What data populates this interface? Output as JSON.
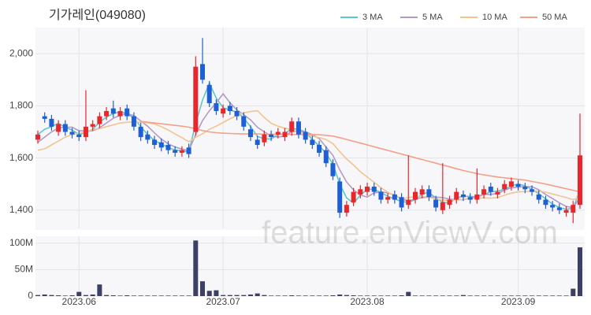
{
  "chart_data": {
    "type": "candlestick",
    "title": "기가레인(049080)",
    "watermark": "feature.enViewV.com",
    "categories": [
      null,
      null,
      null,
      null,
      null,
      null,
      "2023.06",
      null,
      null,
      null,
      null,
      null,
      null,
      null,
      null,
      null,
      null,
      null,
      null,
      null,
      null,
      null,
      null,
      null,
      null,
      null,
      null,
      "2023.07",
      null,
      null,
      null,
      null,
      null,
      null,
      null,
      null,
      null,
      null,
      null,
      null,
      null,
      null,
      null,
      null,
      null,
      null,
      null,
      null,
      "2023.08",
      null,
      null,
      null,
      null,
      null,
      null,
      null,
      null,
      null,
      null,
      null,
      null,
      null,
      null,
      null,
      null,
      null,
      null,
      null,
      null,
      null,
      "2023.09",
      null,
      null,
      null,
      null,
      null,
      null,
      null,
      null,
      null
    ],
    "open": [
      1670,
      1760,
      1750,
      1700,
      1730,
      1700,
      1690,
      1680,
      1720,
      1730,
      1760,
      1790,
      1760,
      1790,
      1760,
      1720,
      1690,
      1670,
      1660,
      1650,
      1630,
      1620,
      1640,
      1700,
      1960,
      1880,
      1810,
      1770,
      1800,
      1780,
      1760,
      1710,
      1670,
      1660,
      1690,
      1690,
      1680,
      1700,
      1740,
      1700,
      1670,
      1650,
      1630,
      1580,
      1510,
      1390,
      1430,
      1460,
      1470,
      1490,
      1470,
      1440,
      1460,
      1450,
      1420,
      1440,
      1460,
      1480,
      1440,
      1400,
      1420,
      1440,
      1460,
      1450,
      1440,
      1460,
      1490,
      1460,
      1480,
      1490,
      1500,
      1490,
      1480,
      1460,
      1440,
      1420,
      1410,
      1390,
      1390,
      1420
    ],
    "high": [
      1705,
      1775,
      1765,
      1745,
      1745,
      1715,
      1705,
      1860,
      1745,
      1775,
      1795,
      1820,
      1795,
      1805,
      1775,
      1735,
      1705,
      1685,
      1675,
      1665,
      1645,
      1645,
      1655,
      1990,
      2060,
      1895,
      1825,
      1805,
      1815,
      1795,
      1775,
      1725,
      1685,
      1705,
      1705,
      1715,
      1715,
      1755,
      1755,
      1715,
      1685,
      1665,
      1645,
      1595,
      1525,
      1435,
      1485,
      1495,
      1505,
      1505,
      1485,
      1465,
      1475,
      1465,
      1610,
      1485,
      1495,
      1495,
      1455,
      1580,
      1455,
      1485,
      1475,
      1465,
      1560,
      1495,
      1505,
      1485,
      1515,
      1525,
      1515,
      1505,
      1495,
      1475,
      1455,
      1435,
      1425,
      1415,
      1435,
      1770
    ],
    "low": [
      1655,
      1735,
      1705,
      1685,
      1685,
      1675,
      1665,
      1665,
      1705,
      1715,
      1745,
      1755,
      1745,
      1745,
      1705,
      1665,
      1655,
      1635,
      1625,
      1615,
      1605,
      1605,
      1600,
      1685,
      1885,
      1795,
      1765,
      1755,
      1765,
      1745,
      1705,
      1665,
      1635,
      1645,
      1665,
      1675,
      1665,
      1685,
      1675,
      1655,
      1635,
      1605,
      1565,
      1515,
      1370,
      1375,
      1415,
      1445,
      1455,
      1455,
      1425,
      1425,
      1425,
      1395,
      1405,
      1425,
      1445,
      1435,
      1395,
      1385,
      1405,
      1425,
      1435,
      1425,
      1425,
      1445,
      1455,
      1445,
      1465,
      1475,
      1475,
      1465,
      1455,
      1425,
      1405,
      1395,
      1385,
      1375,
      1350,
      1405
    ],
    "close": [
      1690,
      1750,
      1720,
      1730,
      1700,
      1690,
      1680,
      1720,
      1730,
      1760,
      1780,
      1770,
      1780,
      1760,
      1720,
      1680,
      1670,
      1650,
      1640,
      1630,
      1620,
      1630,
      1615,
      1950,
      1900,
      1810,
      1780,
      1790,
      1780,
      1760,
      1720,
      1680,
      1650,
      1690,
      1680,
      1700,
      1700,
      1740,
      1690,
      1670,
      1650,
      1620,
      1580,
      1530,
      1390,
      1420,
      1470,
      1480,
      1490,
      1470,
      1440,
      1450,
      1440,
      1410,
      1440,
      1470,
      1480,
      1450,
      1410,
      1430,
      1440,
      1470,
      1450,
      1440,
      1460,
      1480,
      1470,
      1470,
      1500,
      1510,
      1490,
      1480,
      1470,
      1440,
      1420,
      1410,
      1400,
      1400,
      1420,
      1610
    ],
    "up_color": "#e8262c",
    "down_color": "#1e5fd6",
    "series": [
      {
        "name": "3 MA",
        "color": "#5cc8c8",
        "values": [
          1690,
          1710,
          1720,
          1733,
          1717,
          1707,
          1690,
          1697,
          1710,
          1737,
          1757,
          1770,
          1777,
          1770,
          1753,
          1720,
          1690,
          1667,
          1653,
          1640,
          1630,
          1627,
          1622,
          1732,
          1822,
          1887,
          1830,
          1793,
          1783,
          1777,
          1753,
          1720,
          1683,
          1673,
          1673,
          1690,
          1693,
          1713,
          1710,
          1700,
          1670,
          1647,
          1617,
          1577,
          1500,
          1447,
          1427,
          1457,
          1480,
          1480,
          1467,
          1453,
          1443,
          1433,
          1430,
          1440,
          1463,
          1467,
          1447,
          1430,
          1427,
          1447,
          1453,
          1453,
          1450,
          1460,
          1470,
          1473,
          1480,
          1493,
          1500,
          1493,
          1480,
          1463,
          1443,
          1423,
          1410,
          1403,
          1407,
          1477
        ]
      },
      {
        "name": "5 MA",
        "color": "#b39ac9",
        "values": [
          1660,
          1680,
          1700,
          1715,
          1718,
          1718,
          1704,
          1704,
          1704,
          1716,
          1734,
          1752,
          1764,
          1770,
          1762,
          1742,
          1722,
          1696,
          1672,
          1654,
          1642,
          1634,
          1627,
          1689,
          1743,
          1781,
          1811,
          1846,
          1812,
          1784,
          1766,
          1746,
          1718,
          1700,
          1684,
          1680,
          1684,
          1702,
          1702,
          1700,
          1690,
          1674,
          1642,
          1610,
          1554,
          1508,
          1478,
          1458,
          1450,
          1466,
          1470,
          1466,
          1458,
          1442,
          1436,
          1442,
          1448,
          1450,
          1450,
          1448,
          1442,
          1440,
          1440,
          1446,
          1452,
          1460,
          1460,
          1464,
          1476,
          1486,
          1488,
          1490,
          1490,
          1478,
          1460,
          1444,
          1428,
          1414,
          1410,
          1448
        ]
      },
      {
        "name": "10 MA",
        "color": "#f3c48e",
        "values": [
          1630,
          1635,
          1650,
          1665,
          1680,
          1690,
          1695,
          1700,
          1710,
          1712,
          1720,
          1727,
          1734,
          1737,
          1738,
          1737,
          1735,
          1730,
          1720,
          1707,
          1692,
          1678,
          1662,
          1679,
          1693,
          1710,
          1722,
          1736,
          1750,
          1763,
          1773,
          1778,
          1781,
          1755,
          1733,
          1722,
          1714,
          1709,
          1700,
          1691,
          1684,
          1678,
          1671,
          1655,
          1624,
          1596,
          1573,
          1547,
          1527,
          1507,
          1486,
          1469,
          1455,
          1443,
          1448,
          1452,
          1453,
          1450,
          1442,
          1438,
          1438,
          1440,
          1441,
          1444,
          1446,
          1447,
          1446,
          1448,
          1457,
          1465,
          1470,
          1471,
          1473,
          1473,
          1469,
          1462,
          1455,
          1448,
          1440,
          1450
        ]
      },
      {
        "name": "50 MA",
        "color": "#f3a08a",
        "values": [
          null,
          null,
          null,
          null,
          null,
          null,
          null,
          null,
          null,
          null,
          null,
          null,
          null,
          null,
          null,
          1740,
          1737,
          1734,
          1731,
          1728,
          1725,
          1722,
          1718,
          1712,
          1705,
          1700,
          1697,
          1695,
          1694,
          1693,
          1692,
          1692,
          1692,
          1691,
          1691,
          1691,
          1691,
          1690,
          1690,
          1690,
          1690,
          1689,
          1687,
          1684,
          1678,
          1671,
          1664,
          1657,
          1650,
          1643,
          1636,
          1629,
          1622,
          1615,
          1608,
          1601,
          1594,
          1587,
          1580,
          1573,
          1566,
          1559,
          1552,
          1546,
          1540,
          1535,
          1531,
          1527,
          1524,
          1521,
          1518,
          1515,
          1510,
          1505,
          1500,
          1494,
          1488,
          1482,
          1476,
          1470
        ]
      }
    ],
    "ylim": [
      1330,
      2100
    ],
    "yticks": [
      {
        "value": 1400,
        "label": "1,400"
      },
      {
        "value": 1600,
        "label": "1,600"
      },
      {
        "value": 1800,
        "label": "1,800"
      },
      {
        "value": 2000,
        "label": "2,000"
      }
    ],
    "grid": true,
    "volume": {
      "color": "#3c3f66",
      "values": [
        2000000,
        3000000,
        2000000,
        1500000,
        1000000,
        1500000,
        8000000,
        2000000,
        3000000,
        22000000,
        2000000,
        1500000,
        1000000,
        1500000,
        1000000,
        1000000,
        1000000,
        1000000,
        1000000,
        1000000,
        1000000,
        1000000,
        1000000,
        105000000,
        28000000,
        10000000,
        11000000,
        2000000,
        2000000,
        2000000,
        2000000,
        3000000,
        5000000,
        2000000,
        1000000,
        1000000,
        1000000,
        1500000,
        1000000,
        1000000,
        1000000,
        1000000,
        1000000,
        1500000,
        3000000,
        2000000,
        1500000,
        1000000,
        1000000,
        1000000,
        1000000,
        1000000,
        1000000,
        1500000,
        8000000,
        1000000,
        1000000,
        1000000,
        1000000,
        1000000,
        1000000,
        1000000,
        2000000,
        1000000,
        1000000,
        1000000,
        1000000,
        1000000,
        1000000,
        1000000,
        1000000,
        1000000,
        1000000,
        1000000,
        1000000,
        1000000,
        1000000,
        1000000,
        14000000,
        92000000
      ],
      "ylim": [
        0,
        113000000
      ],
      "yticks": [
        0,
        {
          "value": 50000000,
          "label": "50M"
        },
        {
          "value": 100000000,
          "label": "100M"
        }
      ]
    }
  }
}
